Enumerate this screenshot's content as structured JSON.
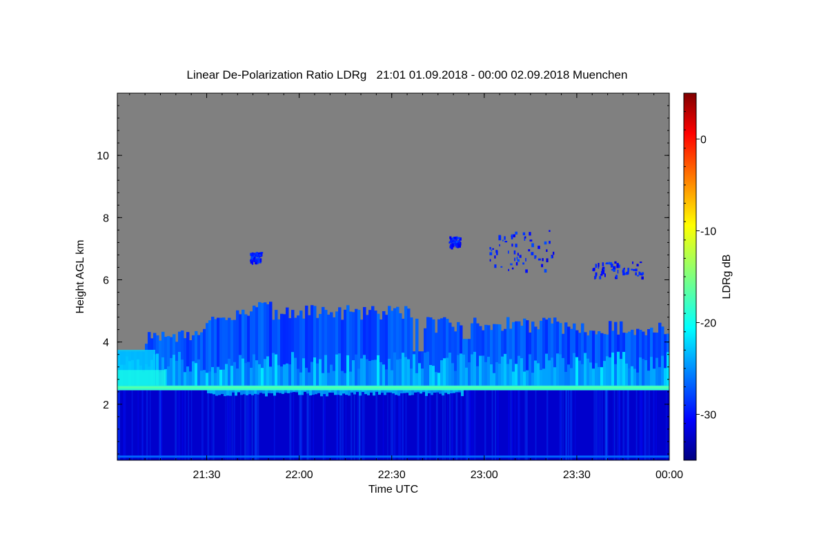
{
  "chart_data": {
    "type": "heatmap",
    "title": "Linear De-Polarization Ratio LDRg   21:01 01.09.2018 - 00:00 02.09.2018 Muenchen",
    "xlabel": "Time UTC",
    "ylabel": "Height AGL km",
    "x_range_hours": [
      21.017,
      24.0
    ],
    "x_ticks": [
      {
        "value": 21.5,
        "label": "21:30"
      },
      {
        "value": 22.0,
        "label": "22:00"
      },
      {
        "value": 22.5,
        "label": "22:30"
      },
      {
        "value": 23.0,
        "label": "23:00"
      },
      {
        "value": 23.5,
        "label": "23:30"
      },
      {
        "value": 24.0,
        "label": "00:00"
      }
    ],
    "y_range_km": [
      0.2,
      12.0
    ],
    "y_ticks": [
      {
        "value": 2,
        "label": "2"
      },
      {
        "value": 4,
        "label": "4"
      },
      {
        "value": 6,
        "label": "6"
      },
      {
        "value": 8,
        "label": "8"
      },
      {
        "value": 10,
        "label": "10"
      }
    ],
    "colorbar": {
      "label": "LDRg dB",
      "range": [
        -35,
        5
      ],
      "ticks": [
        {
          "value": 0,
          "label": "0"
        },
        {
          "value": -10,
          "label": "-10"
        },
        {
          "value": -20,
          "label": "-20"
        },
        {
          "value": -30,
          "label": "-30"
        }
      ],
      "colormap": "jet"
    },
    "no_data_color": "#808080",
    "regions": [
      {
        "name": "boundary layer below cloud base",
        "height_km": [
          0.2,
          2.45
        ],
        "ldr_db": -32
      },
      {
        "name": "melting layer / cloud base band",
        "height_km": [
          2.45,
          2.6
        ],
        "ldr_db": -18
      },
      {
        "name": "precipitation fall streaks",
        "height_km": [
          2.6,
          5.2
        ],
        "ldr_db": -27
      },
      {
        "name": "cirrus patches",
        "height_km": [
          6.0,
          7.8
        ],
        "ldr_db": -29
      }
    ]
  }
}
